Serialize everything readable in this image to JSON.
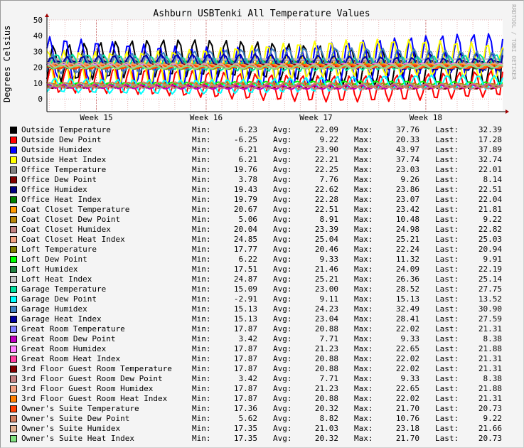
{
  "chart_data": {
    "type": "line",
    "title": "Ashburn USBTenki All Temperature Values",
    "ylabel": "Degrees Celsius",
    "xlabel": "",
    "ylim": [
      -8,
      50
    ],
    "yticks": [
      0,
      10,
      20,
      30,
      40,
      50
    ],
    "xlim": [
      14.55,
      18.7
    ],
    "xticks": [
      {
        "label": "Week 15",
        "value": 15
      },
      {
        "label": "Week 16",
        "value": 16
      },
      {
        "label": "Week 17",
        "value": 17
      },
      {
        "label": "Week 18",
        "value": 18
      }
    ],
    "grid": true,
    "watermark": "RRDTOOL / TOBI OETIKER",
    "legend_columns": [
      "Min:",
      "Avg:",
      "Max:",
      "Last:"
    ],
    "series": [
      {
        "name": "Outside Temperature",
        "color": "#000000",
        "min": "6.23",
        "avg": "22.09",
        "max": "37.76",
        "last": "32.39"
      },
      {
        "name": "Outside Dew Point",
        "color": "#ff0000",
        "min": "-6.25",
        "avg": "9.22",
        "max": "20.33",
        "last": "17.28"
      },
      {
        "name": "Outside Humidex",
        "color": "#0000ff",
        "min": "6.21",
        "avg": "23.90",
        "max": "43.97",
        "last": "37.89"
      },
      {
        "name": "Outside Heat Index",
        "color": "#ffff00",
        "min": "6.21",
        "avg": "22.21",
        "max": "37.74",
        "last": "32.74"
      },
      {
        "name": "Office Temperature",
        "color": "#808080",
        "min": "19.76",
        "avg": "22.25",
        "max": "23.03",
        "last": "22.01"
      },
      {
        "name": "Office Dew Point",
        "color": "#800000",
        "min": "3.78",
        "avg": "7.76",
        "max": "9.26",
        "last": "8.14"
      },
      {
        "name": "Office Humidex",
        "color": "#000080",
        "min": "19.43",
        "avg": "22.62",
        "max": "23.86",
        "last": "22.51"
      },
      {
        "name": "Office Heat Index",
        "color": "#008000",
        "min": "19.79",
        "avg": "22.28",
        "max": "23.07",
        "last": "22.04"
      },
      {
        "name": "Coat Closet Temperature",
        "color": "#ff9900",
        "min": "20.67",
        "avg": "22.51",
        "max": "23.42",
        "last": "21.81"
      },
      {
        "name": "Coat Closet Dew Point",
        "color": "#b8860b",
        "min": "5.06",
        "avg": "8.91",
        "max": "10.48",
        "last": "9.22"
      },
      {
        "name": "Coat Closet Humidex",
        "color": "#c08080",
        "min": "20.04",
        "avg": "23.39",
        "max": "24.98",
        "last": "22.82"
      },
      {
        "name": "Coat Closet Heat Index",
        "color": "#f0a080",
        "min": "24.85",
        "avg": "25.04",
        "max": "25.21",
        "last": "25.03"
      },
      {
        "name": "Loft Temperature",
        "color": "#808000",
        "min": "17.77",
        "avg": "20.46",
        "max": "22.24",
        "last": "20.94"
      },
      {
        "name": "Loft Dew Point",
        "color": "#00ff00",
        "min": "6.22",
        "avg": "9.33",
        "max": "11.32",
        "last": "9.91"
      },
      {
        "name": "Loft Humidex",
        "color": "#208040",
        "min": "17.51",
        "avg": "21.46",
        "max": "24.09",
        "last": "22.19"
      },
      {
        "name": "Loft Heat Index",
        "color": "#c0c0c0",
        "min": "24.87",
        "avg": "25.21",
        "max": "26.36",
        "last": "25.14"
      },
      {
        "name": "Garage Temperature",
        "color": "#00e0a0",
        "min": "15.09",
        "avg": "23.00",
        "max": "28.52",
        "last": "27.75"
      },
      {
        "name": "Garage Dew Point",
        "color": "#00ffff",
        "min": "-2.91",
        "avg": "9.11",
        "max": "15.13",
        "last": "13.52"
      },
      {
        "name": "Garage Humidex",
        "color": "#4080c0",
        "min": "15.13",
        "avg": "24.23",
        "max": "32.49",
        "last": "30.90"
      },
      {
        "name": "Garage Heat Index",
        "color": "#0000a0",
        "min": "15.13",
        "avg": "23.04",
        "max": "28.41",
        "last": "27.59"
      },
      {
        "name": "Great Room Temperature",
        "color": "#8080ff",
        "min": "17.87",
        "avg": "20.88",
        "max": "22.02",
        "last": "21.31"
      },
      {
        "name": "Great Room Dew Point",
        "color": "#c000c0",
        "min": "3.42",
        "avg": "7.71",
        "max": "9.33",
        "last": "8.38"
      },
      {
        "name": "Great Room Humidex",
        "color": "#ff80ff",
        "min": "17.87",
        "avg": "21.23",
        "max": "22.65",
        "last": "21.88"
      },
      {
        "name": "Great Room Heat Index",
        "color": "#ff40a0",
        "min": "17.87",
        "avg": "20.88",
        "max": "22.02",
        "last": "21.31"
      },
      {
        "name": "3rd Floor Guest Room Temperature",
        "color": "#800000",
        "min": "17.87",
        "avg": "20.88",
        "max": "22.02",
        "last": "21.31"
      },
      {
        "name": "3rd Floor Guest Room Dew Point",
        "color": "#c08080",
        "min": "3.42",
        "avg": "7.71",
        "max": "9.33",
        "last": "8.38"
      },
      {
        "name": "3rd Floor Guest Room Humidex",
        "color": "#f0a080",
        "min": "17.87",
        "avg": "21.23",
        "max": "22.65",
        "last": "21.88"
      },
      {
        "name": "3rd Floor Guest Room Heat Index",
        "color": "#ff8000",
        "min": "17.87",
        "avg": "20.88",
        "max": "22.02",
        "last": "21.31"
      },
      {
        "name": "Owner's Suite Temperature",
        "color": "#ff4000",
        "min": "17.36",
        "avg": "20.32",
        "max": "21.70",
        "last": "20.73"
      },
      {
        "name": "Owner's Suite Dew Point",
        "color": "#d08060",
        "min": "5.62",
        "avg": "8.82",
        "max": "10.76",
        "last": "9.22"
      },
      {
        "name": "Owner's Suite Humidex",
        "color": "#e0b090",
        "min": "17.35",
        "avg": "21.03",
        "max": "23.18",
        "last": "21.66"
      },
      {
        "name": "Owner's Suite Heat Index",
        "color": "#80e080",
        "min": "17.35",
        "avg": "20.32",
        "max": "21.70",
        "last": "20.73"
      }
    ]
  }
}
